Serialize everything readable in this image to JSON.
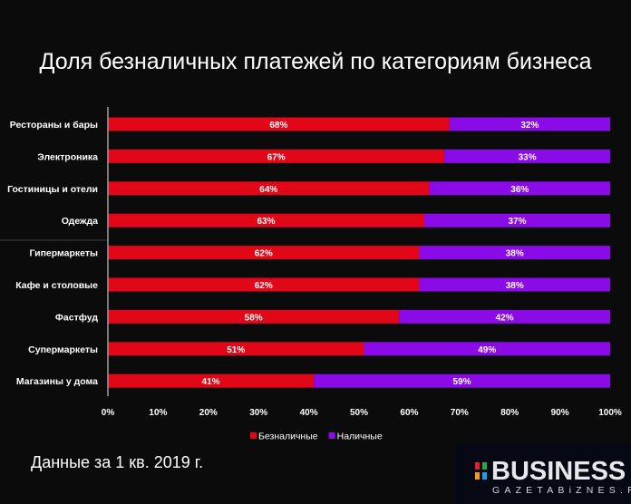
{
  "chart_data": {
    "type": "bar",
    "orientation": "horizontal",
    "stacked": true,
    "title": "Доля безналичных платежей по категориям бизнеса",
    "categories": [
      "Рестораны и бары",
      "Электроника",
      "Гостиницы и отели",
      "Одежда",
      "Гипермаркеты",
      "Кафе и столовые",
      "Фастфуд",
      "Супермаркеты",
      "Магазины у дома"
    ],
    "series": [
      {
        "name": "Безналичные",
        "color": "#e10618",
        "values": [
          68,
          67,
          64,
          63,
          62,
          62,
          58,
          51,
          41
        ]
      },
      {
        "name": "Наличные",
        "color": "#8a0ae8",
        "values": [
          32,
          33,
          36,
          37,
          38,
          38,
          42,
          49,
          59
        ]
      }
    ],
    "xlim": [
      0,
      100
    ],
    "xticks": [
      "0%",
      "10%",
      "20%",
      "30%",
      "40%",
      "50%",
      "60%",
      "70%",
      "80%",
      "90%",
      "100%"
    ],
    "data_label_suffix": "%",
    "legend": "bottom",
    "grid": false
  },
  "footnote": "Данные за 1 кв. 2019 г.",
  "logo": {
    "word": "BUSINESS",
    "sub": "GAZETABiZNES.RU"
  }
}
